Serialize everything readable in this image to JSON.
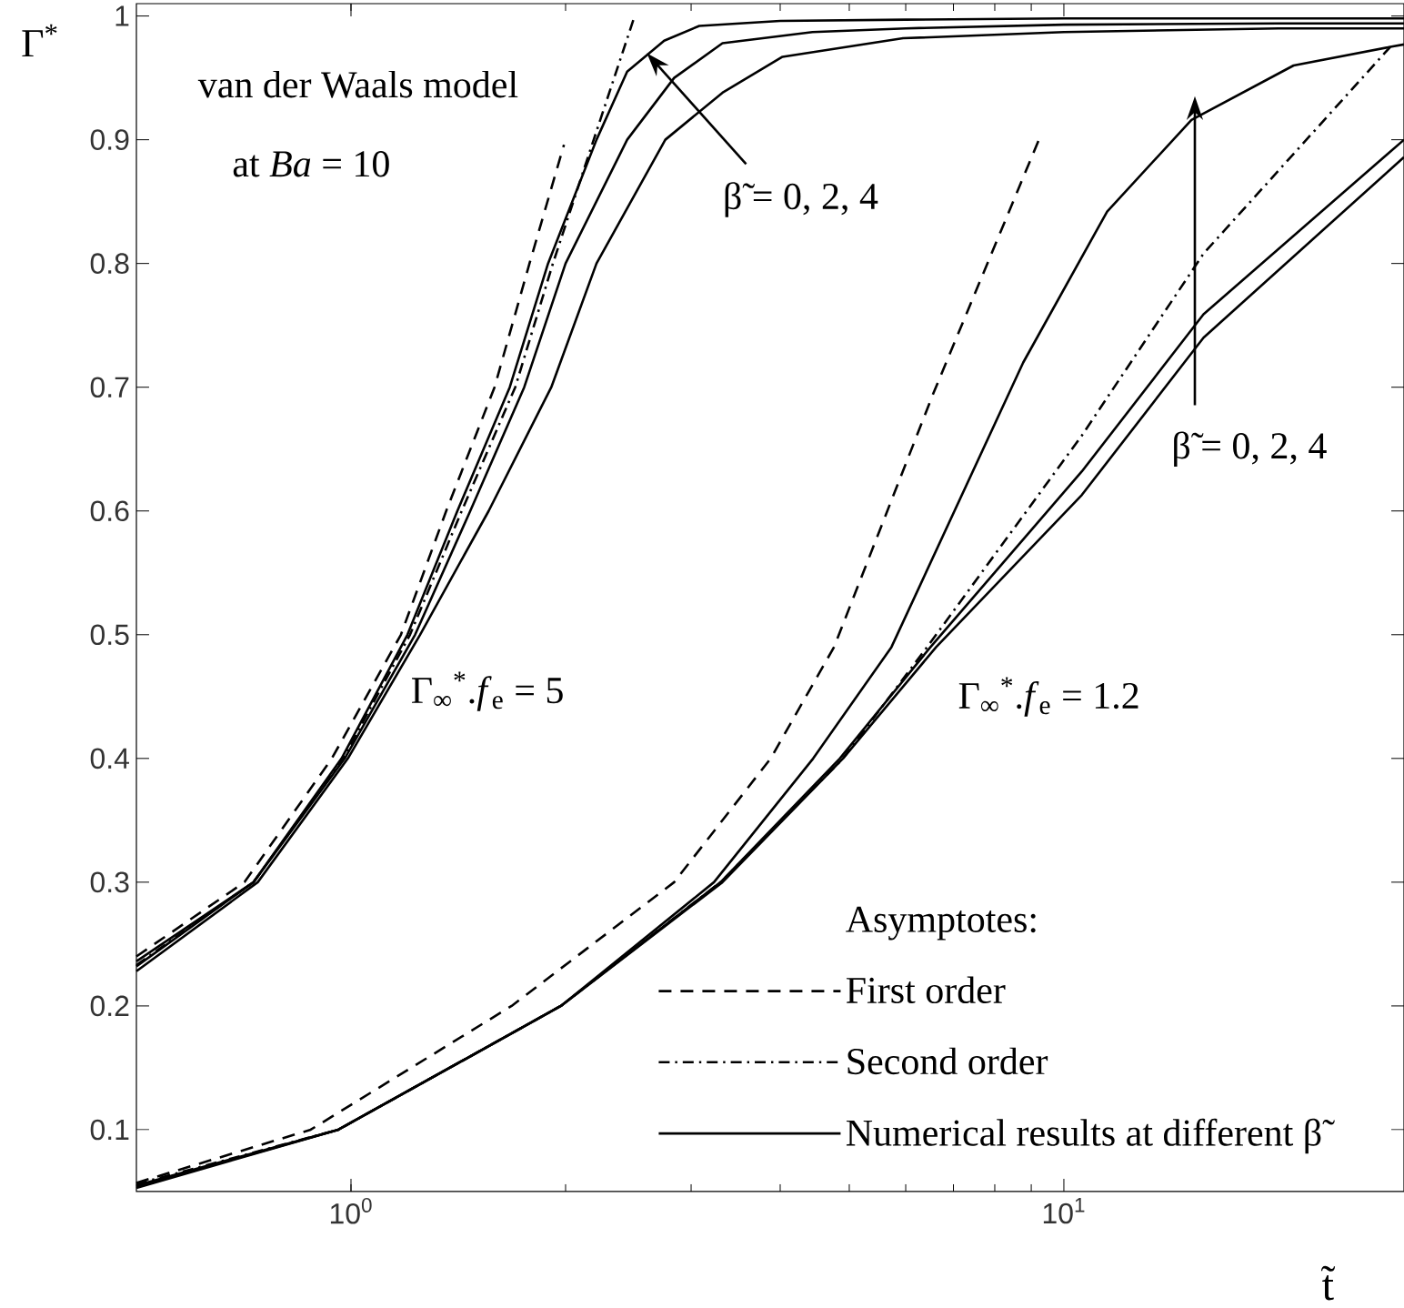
{
  "chart_data": {
    "type": "line",
    "xlabel": "t̃",
    "ylabel": "Γ$^{*}$",
    "legend_title": "Asymptotes:",
    "legend": "bottom right",
    "log": "x",
    "xlim": [
      0.5,
      30
    ],
    "ylim": [
      0.05,
      1.01
    ],
    "xticks": [
      {
        "value": 1,
        "label": "10$^{0}$"
      },
      {
        "value": 10,
        "label": "10$^{1}$"
      }
    ],
    "yticks": [
      0.1,
      0.2,
      0.3,
      0.4,
      0.5,
      0.6,
      0.7,
      0.8,
      0.9,
      1
    ],
    "annotations": [
      "van der Waals model",
      "at *Ba* = 10",
      {
        "text": "β̃ = 0, 2, 4",
        "x": 2.6,
        "y": 0.97
      },
      "β̃ = 0, 2, 4",
      "Γ$_{∞}$$^{*}$.*f*$_{e}$ = 5",
      "Γ$_{∞}$$^{*}$.*f*$_{e}$ = 1.2"
    ],
    "series": [
      {
        "name": "First order",
        "color": "#000000",
        "line_style": "dashed",
        "x": [
          0.5,
          0.709,
          0.94,
          1.175,
          1.36,
          1.59,
          1.78,
          1.99
        ],
        "values": [
          0.24,
          0.3,
          0.4,
          0.5,
          0.6,
          0.7,
          0.8,
          0.896
        ]
      },
      {
        "name": "Second order",
        "color": "#000000",
        "line_style": "dashdot",
        "x": [
          0.5,
          0.73,
          0.975,
          1.21,
          1.43,
          1.7,
          1.92,
          2.19,
          2.5
        ],
        "values": [
          0.233,
          0.3,
          0.4,
          0.5,
          0.6,
          0.7,
          0.8,
          0.9,
          1.0
        ]
      },
      {
        "name": "Numerical results at different β̃",
        "color": "#000000",
        "line_style": "solid",
        "x": [
          0.5,
          0.73,
          0.97,
          1.2,
          1.41,
          1.67,
          1.89,
          2.21,
          2.44,
          2.75,
          3.08,
          4,
          6,
          10,
          20,
          30
        ],
        "values": [
          0.236,
          0.3,
          0.4,
          0.5,
          0.6,
          0.7,
          0.8,
          0.9,
          0.955,
          0.98,
          0.992,
          0.996,
          0.997,
          0.998,
          0.998,
          0.998
        ]
      },
      {
        "color": "#000000",
        "line_style": "solid",
        "x": [
          0.5,
          0.73,
          0.98,
          1.23,
          1.47,
          1.75,
          2.0,
          2.44,
          2.84,
          3.32,
          4.44,
          6,
          10,
          20,
          30
        ],
        "values": [
          0.232,
          0.3,
          0.4,
          0.5,
          0.6,
          0.7,
          0.8,
          0.9,
          0.95,
          0.978,
          0.987,
          0.99,
          0.993,
          0.994,
          0.994
        ]
      },
      {
        "color": "#000000",
        "line_style": "solid",
        "x": [
          0.5,
          0.74,
          0.99,
          1.25,
          1.56,
          1.91,
          2.21,
          2.76,
          3.32,
          4.03,
          5.95,
          10,
          20,
          30
        ],
        "values": [
          0.228,
          0.3,
          0.4,
          0.5,
          0.6,
          0.7,
          0.8,
          0.9,
          0.938,
          0.967,
          0.982,
          0.987,
          0.99,
          0.99
        ]
      },
      {
        "color": "#000000",
        "line_style": "dashed",
        "x": [
          0.5,
          0.878,
          1.68,
          2.84,
          3.88,
          4.76,
          6.56,
          9.21
        ],
        "values": [
          0.057,
          0.1,
          0.2,
          0.3,
          0.4,
          0.49,
          0.695,
          0.899
        ]
      },
      {
        "color": "#000000",
        "line_style": "dashdot",
        "x": [
          0.5,
          0.96,
          1.97,
          3.3,
          4.9,
          6.43,
          10.6,
          15.7,
          28.7
        ],
        "values": [
          0.056,
          0.1,
          0.2,
          0.3,
          0.4,
          0.49,
          0.661,
          0.808,
          0.975
        ]
      },
      {
        "color": "#000000",
        "line_style": "solid",
        "x": [
          0.5,
          0.96,
          1.97,
          3.32,
          4.9,
          6.62,
          10.6,
          15.7,
          30
        ],
        "values": [
          0.055,
          0.1,
          0.2,
          0.3,
          0.4,
          0.49,
          0.613,
          0.74,
          0.886
        ]
      },
      {
        "color": "#000000",
        "line_style": "solid",
        "x": [
          0.5,
          0.96,
          1.97,
          3.3,
          4.85,
          6.5,
          10.6,
          15.7,
          30
        ],
        "values": [
          0.054,
          0.1,
          0.2,
          0.3,
          0.4,
          0.49,
          0.632,
          0.759,
          0.9
        ]
      },
      {
        "color": "#000000",
        "line_style": "solid",
        "x": [
          0.5,
          0.96,
          1.97,
          3.23,
          4.45,
          5.73,
          8.77,
          11.5,
          15.1,
          21,
          28.7,
          30
        ],
        "values": [
          0.053,
          0.1,
          0.2,
          0.3,
          0.4,
          0.49,
          0.72,
          0.842,
          0.916,
          0.96,
          0.975,
          0.977
        ]
      }
    ]
  }
}
